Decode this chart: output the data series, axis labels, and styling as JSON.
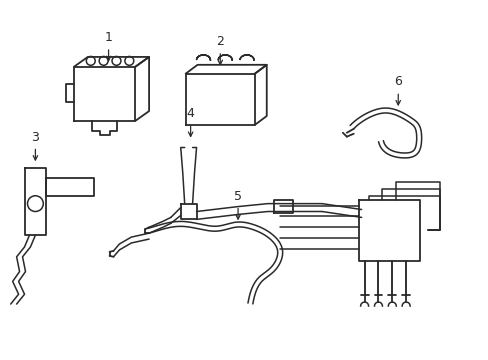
{
  "background_color": "#ffffff",
  "line_color": "#2a2a2a",
  "figsize": [
    4.89,
    3.6
  ],
  "dpi": 100,
  "lw": 1.3,
  "tlw": 1.1
}
